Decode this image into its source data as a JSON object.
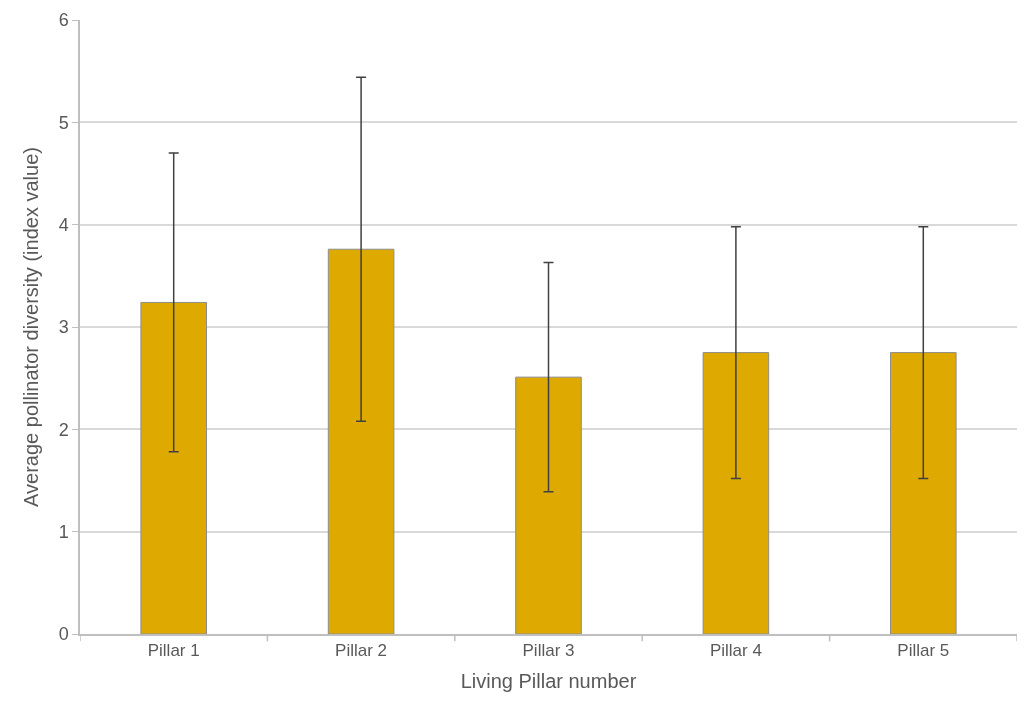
{
  "chart_data": {
    "type": "bar",
    "xlabel": "Living Pillar number",
    "ylabel": "Average pollinator diversity (index value)",
    "categories": [
      "Pillar 1",
      "Pillar 2",
      "Pillar 3",
      "Pillar 4",
      "Pillar 5"
    ],
    "values": [
      3.24,
      3.76,
      2.51,
      2.75,
      2.75
    ],
    "errors": [
      1.46,
      1.68,
      1.12,
      1.23,
      1.23
    ],
    "color": "#dea900",
    "ylim": [
      0,
      6
    ],
    "yticks": [
      0,
      1,
      2,
      3,
      4,
      5,
      6
    ],
    "grid": "y",
    "legend": false
  }
}
